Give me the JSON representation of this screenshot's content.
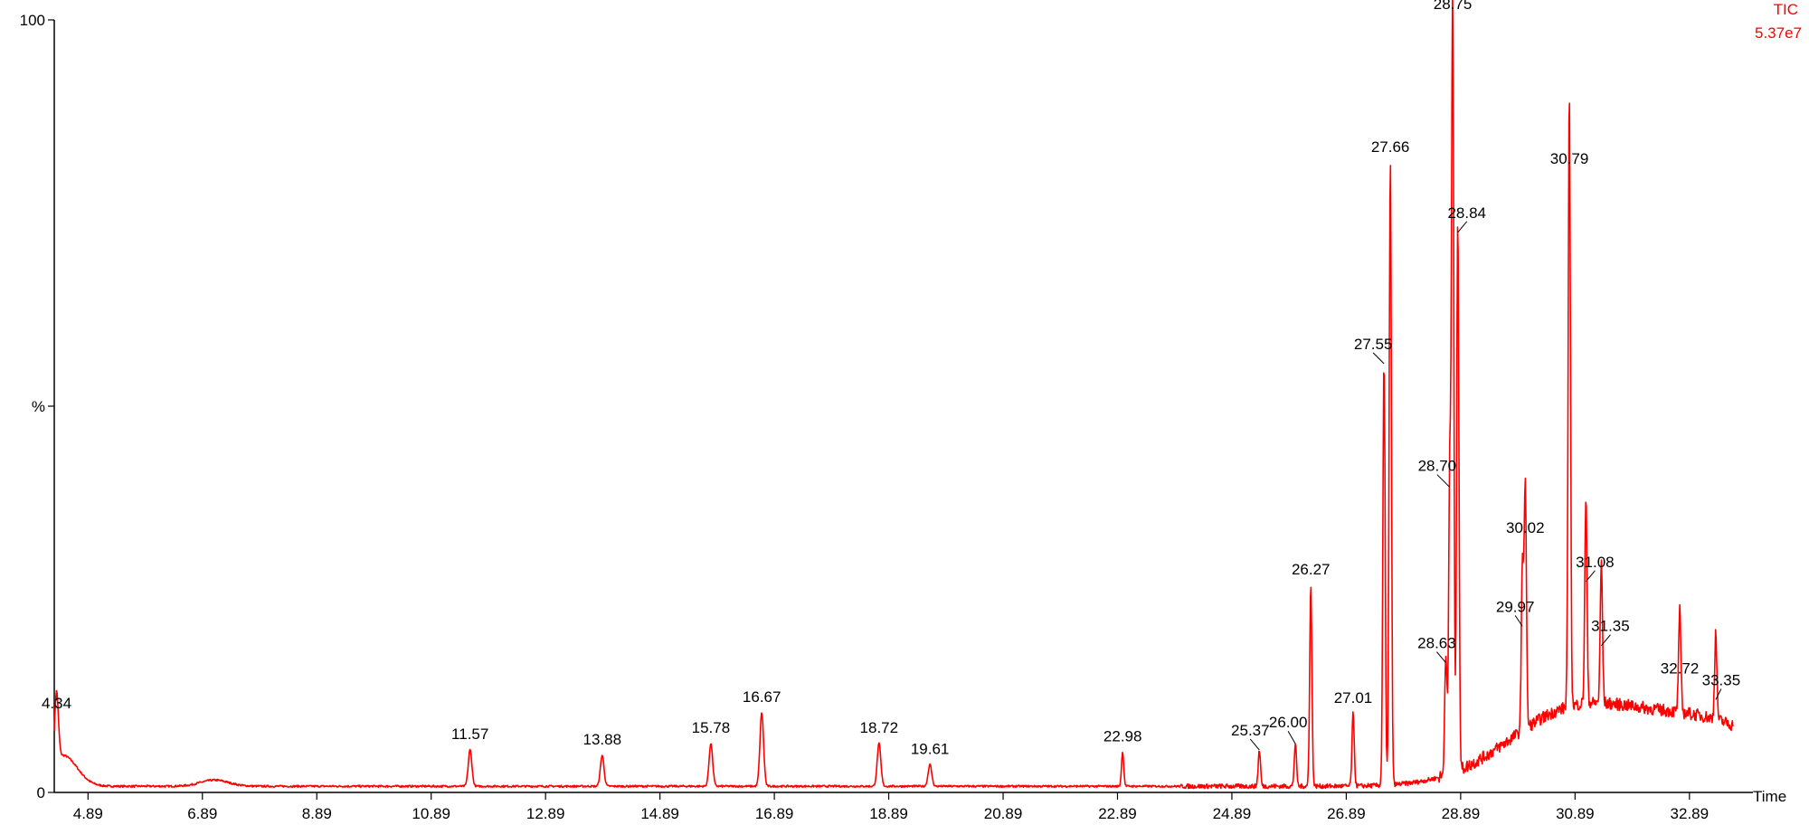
{
  "chart_data": {
    "type": "line",
    "xlabel": "Time",
    "ylabel": "%",
    "xlim": [
      4.3,
      34.0
    ],
    "ylim": [
      0,
      100
    ],
    "x_ticks": [
      4.89,
      6.89,
      8.89,
      10.89,
      12.89,
      14.89,
      16.89,
      18.89,
      20.89,
      22.89,
      24.89,
      26.89,
      28.89,
      30.89,
      32.89
    ],
    "x_tick_labels": [
      "4.89",
      "6.89",
      "8.89",
      "10.89",
      "12.89",
      "14.89",
      "16.89",
      "18.89",
      "20.89",
      "22.89",
      "24.89",
      "26.89",
      "28.89",
      "30.89",
      "32.89"
    ],
    "y_tick_labels": [
      {
        "value": 100,
        "label": "100"
      },
      {
        "value": 50,
        "label": "%"
      },
      {
        "value": 0,
        "label": "0"
      }
    ],
    "trace_label": "TIC",
    "trace_scale": "5.37e7",
    "trace_color": "#ff0000",
    "baseline": 0.8,
    "peaks": [
      {
        "x": 4.34,
        "y": 9.5,
        "label": "4.34"
      },
      {
        "x": 11.57,
        "y": 5.5,
        "label": "11.57"
      },
      {
        "x": 13.88,
        "y": 4.8,
        "label": "13.88"
      },
      {
        "x": 15.78,
        "y": 6.3,
        "label": "15.78"
      },
      {
        "x": 16.67,
        "y": 10.3,
        "label": "16.67"
      },
      {
        "x": 18.72,
        "y": 6.3,
        "label": "18.72"
      },
      {
        "x": 19.61,
        "y": 3.6,
        "label": "19.61"
      },
      {
        "x": 22.98,
        "y": 5.2,
        "label": "22.98"
      },
      {
        "x": 25.37,
        "y": 5.5,
        "label": "25.37"
      },
      {
        "x": 26.0,
        "y": 6.3,
        "label": "26.00"
      },
      {
        "x": 26.27,
        "y": 26.8,
        "label": "26.27"
      },
      {
        "x": 27.01,
        "y": 10.2,
        "label": "27.01"
      },
      {
        "x": 27.55,
        "y": 55.5,
        "label": "27.55"
      },
      {
        "x": 27.66,
        "y": 81.5,
        "label": "27.66"
      },
      {
        "x": 28.63,
        "y": 16.8,
        "label": "28.63"
      },
      {
        "x": 28.7,
        "y": 39.5,
        "label": "28.70"
      },
      {
        "x": 28.75,
        "y": 100,
        "label": "28.75"
      },
      {
        "x": 28.84,
        "y": 72.5,
        "label": "28.84"
      },
      {
        "x": 29.97,
        "y": 21.5,
        "label": "29.97"
      },
      {
        "x": 30.02,
        "y": 32.2,
        "label": "30.02"
      },
      {
        "x": 30.79,
        "y": 80.0,
        "label": "30.79"
      },
      {
        "x": 31.08,
        "y": 27.3,
        "label": "31.08"
      },
      {
        "x": 31.35,
        "y": 19.0,
        "label": "31.35"
      },
      {
        "x": 32.72,
        "y": 14.0,
        "label": "32.72"
      },
      {
        "x": 33.35,
        "y": 12.0,
        "label": "33.35"
      }
    ]
  }
}
